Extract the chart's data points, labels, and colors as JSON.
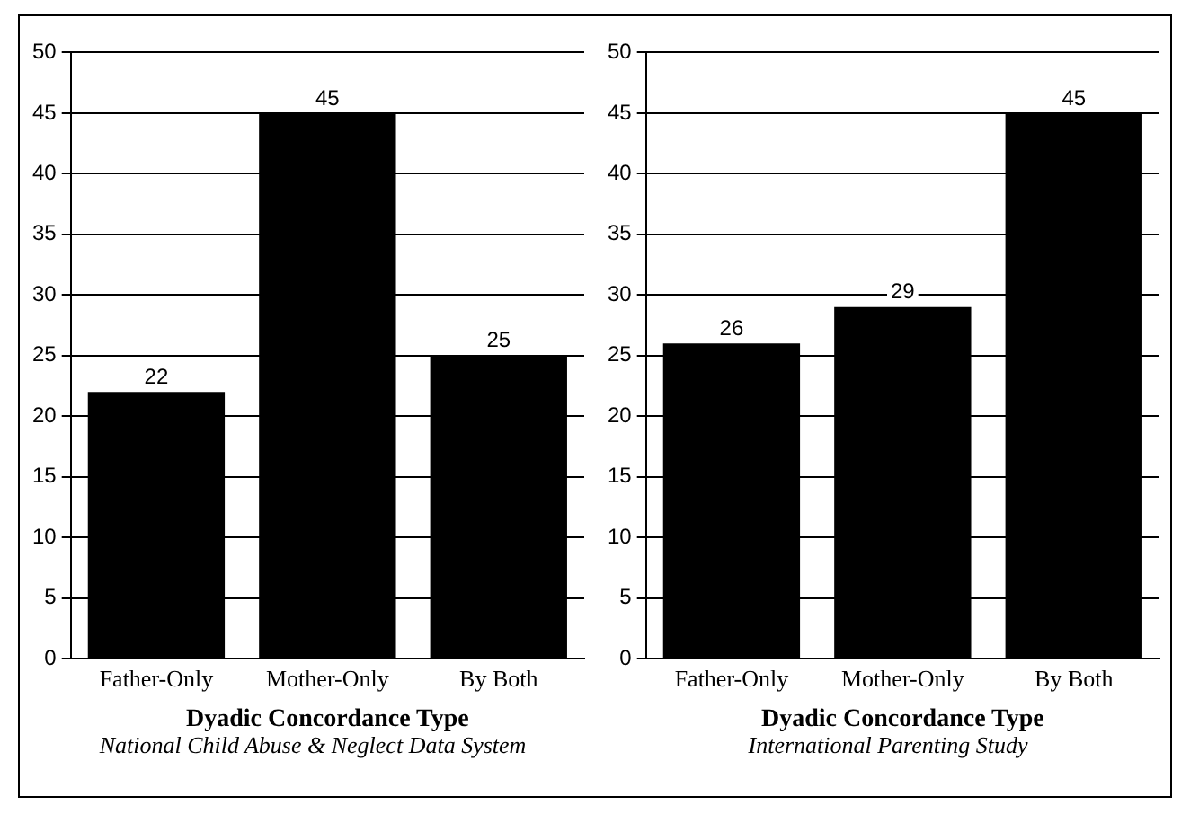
{
  "chart_data": [
    {
      "type": "bar",
      "categories": [
        "Father-Only",
        "Mother-Only",
        "By Both"
      ],
      "values": [
        22,
        45,
        25
      ],
      "color": "#000000",
      "ylim": [
        0,
        50
      ],
      "yticks": [
        0,
        5,
        10,
        15,
        20,
        25,
        30,
        35,
        40,
        45,
        50
      ],
      "grid": "y",
      "data_labels": true,
      "legend": false,
      "xlabel": "Dyadic Concordance Type",
      "annotations": [
        "National Child Abuse & Neglect Data System"
      ]
    },
    {
      "type": "bar",
      "categories": [
        "Father-Only",
        "Mother-Only",
        "By Both"
      ],
      "values": [
        26,
        29,
        45
      ],
      "color": "#000000",
      "ylim": [
        0,
        50
      ],
      "yticks": [
        0,
        5,
        10,
        15,
        20,
        25,
        30,
        35,
        40,
        45,
        50
      ],
      "grid": "y",
      "data_labels": true,
      "legend": false,
      "xlabel": "Dyadic Concordance Type",
      "annotations": [
        "International Parenting Study"
      ]
    }
  ]
}
